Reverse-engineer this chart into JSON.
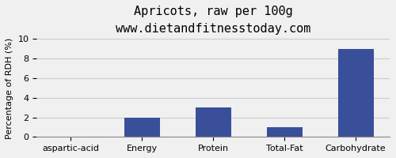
{
  "title": "Apricots, raw per 100g",
  "subtitle": "www.dietandfitnesstoday.com",
  "categories": [
    "aspartic-acid",
    "Energy",
    "Protein",
    "Total-Fat",
    "Carbohydrate"
  ],
  "values": [
    0.0,
    2.0,
    3.0,
    1.0,
    9.0
  ],
  "bar_color": "#3a4f9a",
  "ylabel": "Percentage of RDH (%)",
  "ylim": [
    0,
    10
  ],
  "yticks": [
    0,
    2,
    4,
    6,
    8,
    10
  ],
  "background_color": "#f0f0f0",
  "grid_color": "#cccccc",
  "title_fontsize": 11,
  "subtitle_fontsize": 9,
  "tick_fontsize": 8,
  "ylabel_fontsize": 8
}
